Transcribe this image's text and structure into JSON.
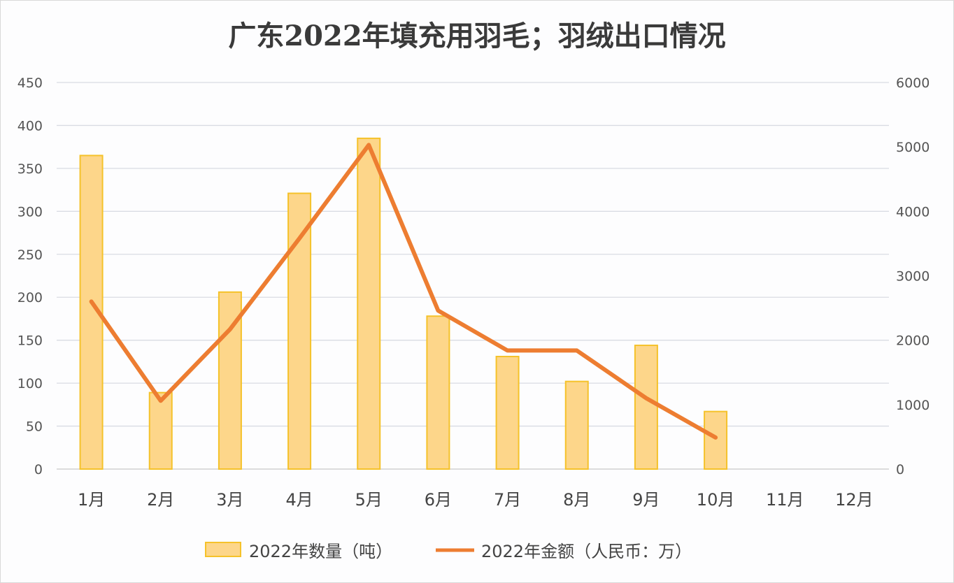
{
  "chart_data": {
    "type": "bar+line",
    "title": "广东2022年填充用羽毛；羽绒出口情况",
    "categories": [
      "1月",
      "2月",
      "3月",
      "4月",
      "5月",
      "6月",
      "7月",
      "8月",
      "9月",
      "10月",
      "11月",
      "12月"
    ],
    "series": [
      {
        "name": "2022年数量（吨）",
        "type": "bar",
        "axis": "left",
        "color": "#fdd68a",
        "border": "#f5c22a",
        "values": [
          365,
          89,
          206,
          321,
          385,
          178,
          131,
          102,
          144,
          67,
          null,
          null
        ]
      },
      {
        "name": "2022年金额（人民币：万）",
        "type": "line",
        "axis": "right",
        "color": "#ed7d31",
        "values": [
          2600,
          1060,
          2170,
          3580,
          5030,
          2460,
          1840,
          1840,
          1100,
          490,
          null,
          null
        ]
      }
    ],
    "y_left": {
      "range": [
        0,
        450
      ],
      "ticks": [
        0,
        50,
        100,
        150,
        200,
        250,
        300,
        350,
        400,
        450
      ]
    },
    "y_right": {
      "range": [
        0,
        6000
      ],
      "ticks": [
        0,
        1000,
        2000,
        3000,
        4000,
        5000,
        6000
      ]
    },
    "grid": true,
    "legend": "bottom"
  }
}
